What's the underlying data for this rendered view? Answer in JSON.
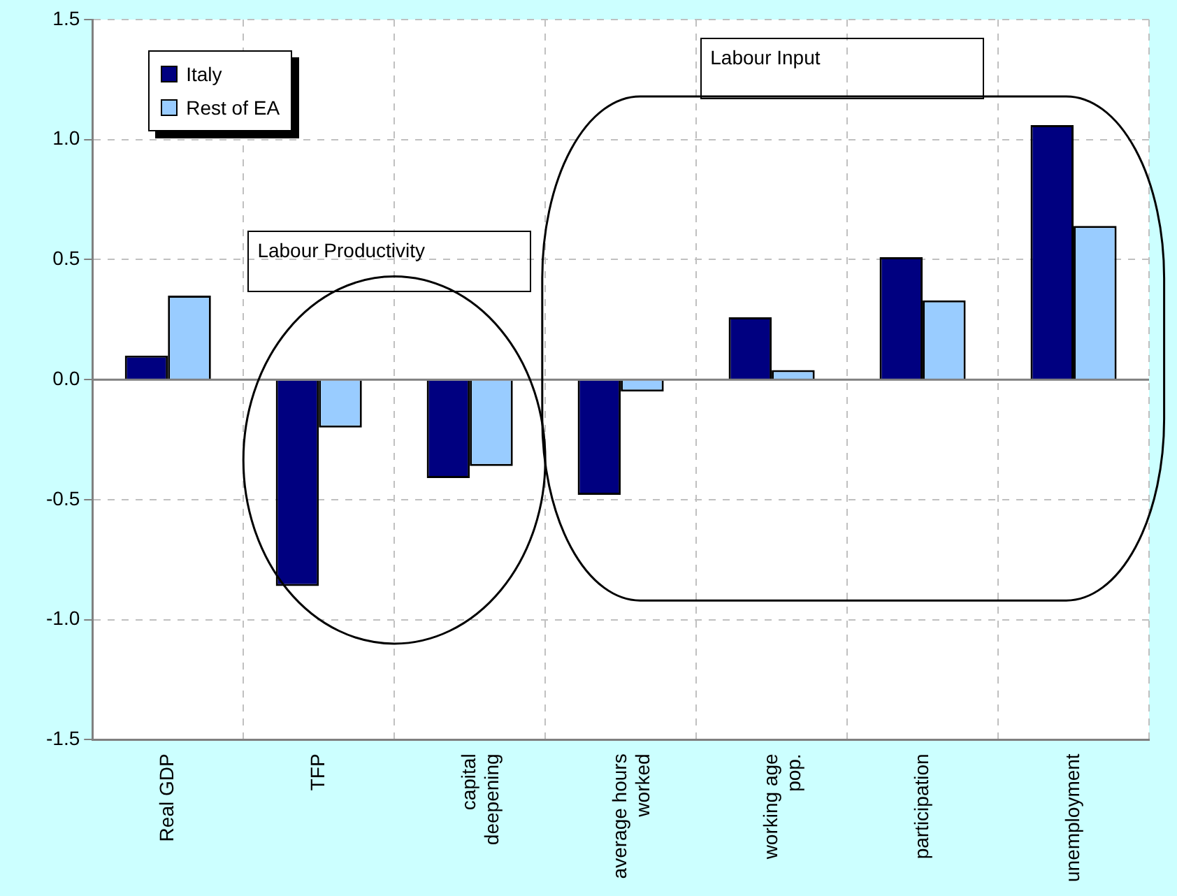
{
  "chart_data": {
    "type": "bar",
    "categories": [
      "Real GDP",
      "TFP",
      "capital deepening",
      "average hours worked",
      "working age pop.",
      "participation",
      "unemployment"
    ],
    "series": [
      {
        "name": "Italy",
        "color": "#000080",
        "values": [
          0.1,
          -0.86,
          -0.41,
          -0.48,
          0.26,
          0.51,
          1.06
        ]
      },
      {
        "name": "Rest of EA",
        "color": "#99ccff",
        "values": [
          0.35,
          -0.2,
          -0.36,
          -0.05,
          0.04,
          0.33,
          0.64
        ]
      }
    ],
    "ylim": [
      -1.5,
      1.5
    ],
    "yticks": [
      {
        "value": -1.5,
        "label": "-1.5"
      },
      {
        "value": -1.0,
        "label": "-1.0"
      },
      -0.5,
      {
        "value": 0,
        "label": "0.0"
      },
      0.5,
      {
        "value": 1.0,
        "label": "1.0"
      },
      1.5
    ],
    "grid": true,
    "legend": "top left",
    "annotations": [
      "Labour Productivity",
      "Labour Input"
    ]
  }
}
